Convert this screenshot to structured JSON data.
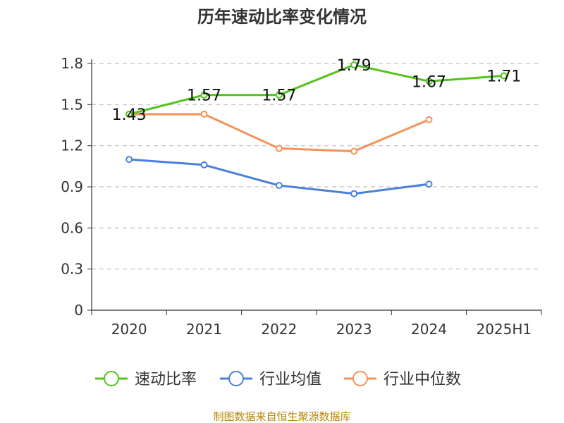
{
  "chart_data": {
    "type": "line",
    "title": "历年速动比率变化情况",
    "categories": [
      "2020",
      "2021",
      "2022",
      "2023",
      "2024",
      "2025H1"
    ],
    "ylim": [
      0,
      1.8
    ],
    "yticks": [
      "0",
      "0.3",
      "0.6",
      "0.9",
      "1.2",
      "1.5",
      "1.8"
    ],
    "grid": true,
    "legend_position": "bottom",
    "series": [
      {
        "name": "速动比率",
        "color": "#52c41a",
        "values": [
          1.43,
          1.57,
          1.57,
          1.79,
          1.67,
          1.71
        ],
        "show_labels": true
      },
      {
        "name": "行业均值",
        "color": "#4a7fdc",
        "values": [
          1.1,
          1.06,
          0.91,
          0.85,
          0.92,
          null
        ],
        "show_labels": false
      },
      {
        "name": "行业中位数",
        "color": "#f5925a",
        "values": [
          1.43,
          1.43,
          1.18,
          1.16,
          1.39,
          null
        ],
        "show_labels": false
      }
    ],
    "data_labels": [
      "1.43",
      "1.57",
      "1.57",
      "1.79",
      "1.67",
      "1.71"
    ]
  },
  "source": "制图数据来自恒生聚源数据库"
}
